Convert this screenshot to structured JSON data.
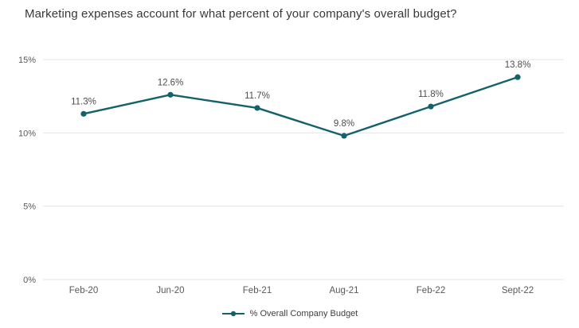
{
  "title": "Marketing expenses account for what percent of your company's overall budget?",
  "legend": {
    "label": "% Overall Company Budget"
  },
  "colors": {
    "line": "#14616c",
    "marker": "#14616c",
    "grid": "#e4e4e4",
    "axis_text": "#595959",
    "data_label_text": "#4d4d4d",
    "title_text": "#383838"
  },
  "chart_data": {
    "type": "line",
    "title": "Marketing expenses account for what percent of your company's overall budget?",
    "categories": [
      "Feb-20",
      "Jun-20",
      "Feb-21",
      "Aug-21",
      "Feb-22",
      "Sept-22"
    ],
    "values": [
      11.3,
      12.6,
      11.7,
      9.8,
      11.8,
      13.8
    ],
    "data_labels": [
      "11.3%",
      "12.6%",
      "11.7%",
      "9.8%",
      "11.8%",
      "13.8%"
    ],
    "series_name": "% Overall Company Budget",
    "xlabel": "",
    "ylabel": "",
    "ylim": [
      0,
      15
    ],
    "yticks": [
      0,
      5,
      10,
      15
    ],
    "ytick_labels": [
      "0%",
      "5%",
      "10%",
      "15%"
    ],
    "grid": true,
    "legend_position": "bottom"
  }
}
